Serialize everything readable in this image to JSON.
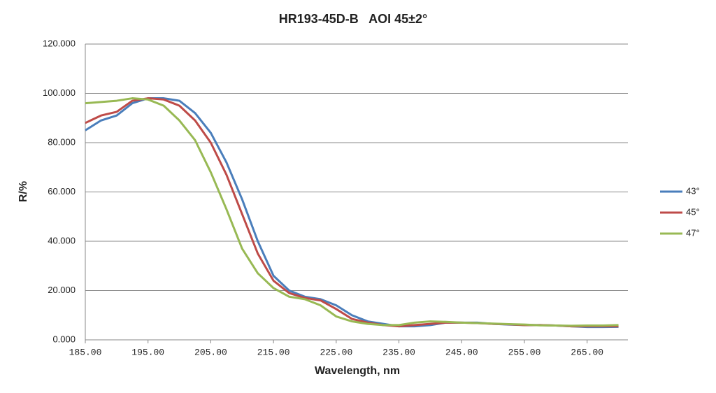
{
  "chart_data": {
    "type": "line",
    "title": "HR193-45D-B   AOI 45±2°",
    "x_label": "Wavelength, nm",
    "y_label": "R/%",
    "x": [
      185,
      187.5,
      190,
      192.5,
      195,
      197.5,
      200,
      202.5,
      205,
      207.5,
      210,
      212.5,
      215,
      217.5,
      220,
      222.5,
      225,
      227.5,
      230,
      232.5,
      235,
      237.5,
      240,
      242.5,
      245,
      247.5,
      250,
      252.5,
      255,
      257.5,
      260,
      262.5,
      265,
      267.5,
      270
    ],
    "series": [
      {
        "name": "43°",
        "color": "#4a7ebb",
        "values": [
          85,
          89,
          91,
          96,
          98,
          98,
          97,
          92,
          84,
          72,
          57,
          40,
          26,
          20,
          17.5,
          16.5,
          14,
          10,
          7.5,
          6.5,
          5.5,
          5.5,
          6,
          7,
          7,
          7,
          6.5,
          6.2,
          6,
          6,
          5.8,
          5.5,
          5.2,
          5.2,
          5.3
        ]
      },
      {
        "name": "45°",
        "color": "#be4b48",
        "values": [
          88,
          91,
          92.5,
          97,
          98,
          97.5,
          95,
          89,
          80,
          67,
          51,
          35,
          24,
          19,
          17,
          16,
          12.5,
          8.5,
          7,
          6,
          5.5,
          6,
          6.5,
          7,
          7,
          6.8,
          6.5,
          6.3,
          6,
          6,
          5.8,
          5.5,
          5.5,
          5.5,
          5.5
        ]
      },
      {
        "name": "47°",
        "color": "#98b954",
        "values": [
          96,
          96.5,
          97,
          98,
          97.5,
          95,
          89,
          81,
          68,
          53,
          37,
          27,
          21,
          17.5,
          16.5,
          14,
          9.5,
          7.5,
          6.5,
          6,
          6,
          7,
          7.5,
          7.3,
          7,
          6.8,
          6.6,
          6.4,
          6.2,
          5.9,
          5.8,
          5.7,
          5.8,
          5.8,
          6
        ]
      }
    ],
    "xlim": [
      185,
      271.5
    ],
    "ylim": [
      0,
      120
    ],
    "xticks": [
      {
        "value": 185,
        "label": "185.00"
      },
      {
        "value": 195,
        "label": "195.00"
      },
      {
        "value": 205,
        "label": "205.00"
      },
      {
        "value": 215,
        "label": "215.00"
      },
      {
        "value": 225,
        "label": "225.00"
      },
      {
        "value": 235,
        "label": "235.00"
      },
      {
        "value": 245,
        "label": "245.00"
      },
      {
        "value": 255,
        "label": "255.00"
      },
      {
        "value": 265,
        "label": "265.00"
      }
    ],
    "yticks": [
      {
        "value": 0,
        "label": "0.000"
      },
      {
        "value": 20,
        "label": "20.000"
      },
      {
        "value": 40,
        "label": "40.000"
      },
      {
        "value": 60,
        "label": "60.000"
      },
      {
        "value": 80,
        "label": "80.000"
      },
      {
        "value": 100,
        "label": "100.000"
      },
      {
        "value": 120,
        "label": "120.000"
      }
    ],
    "grid": true,
    "legend": "right"
  }
}
